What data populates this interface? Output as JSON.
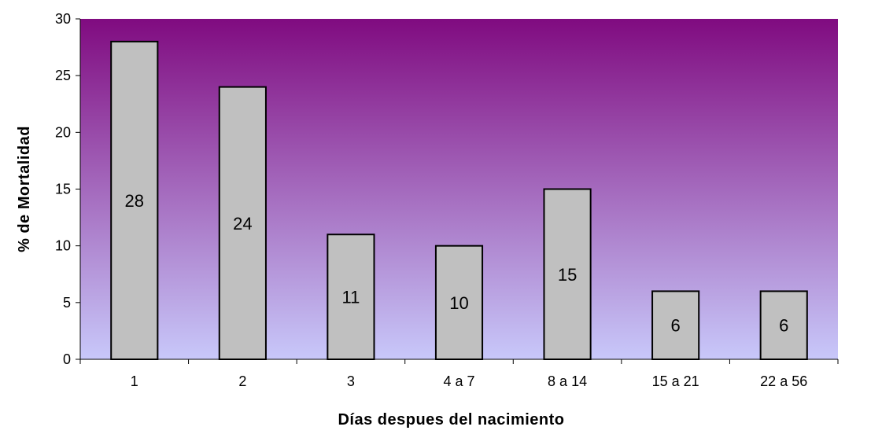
{
  "chart_data": {
    "type": "bar",
    "categories": [
      "1",
      "2",
      "3",
      "4 a 7",
      "8 a 14",
      "15 a 21",
      "22 a 56"
    ],
    "values": [
      28,
      24,
      11,
      10,
      15,
      6,
      6
    ],
    "data_labels": [
      "28",
      "24",
      "11",
      "10",
      "15",
      "6",
      "6"
    ],
    "xlabel": "Días despues del nacimiento",
    "ylabel": "% de Mortalidad",
    "ylim": [
      0,
      30
    ],
    "yticks": [
      0,
      5,
      10,
      15,
      20,
      25,
      30
    ],
    "grid": false,
    "legend": "none",
    "colors": {
      "plot_bg_top": "#800b80",
      "plot_bg_bottom": "#c8c8fa",
      "bar_fill": "#c0c0c0",
      "bar_stroke": "#000000"
    }
  }
}
